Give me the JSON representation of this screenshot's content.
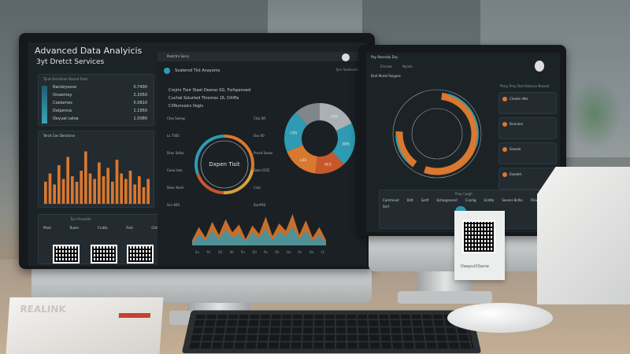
{
  "left_monitor": {
    "title": "Advanced Data Analyicis",
    "subtitle": "3yt Dretct Services",
    "table": {
      "header": "Tyrat Dcsistime Stared Totat",
      "rows": [
        {
          "label": "Randzyoose",
          "value": "0.7490"
        },
        {
          "label": "Onoentoy",
          "value": "2.2050"
        },
        {
          "label": "Coelarnes",
          "value": "5.0810"
        },
        {
          "label": "Delpenna",
          "value": "1.1950"
        },
        {
          "label": "Oeyual catsa",
          "value": "1.0080"
        }
      ]
    },
    "bar_panel_title": "Terch Cen Derstinnn",
    "bar_values": [
      40,
      55,
      35,
      70,
      45,
      85,
      50,
      40,
      60,
      95,
      55,
      45,
      75,
      50,
      65,
      40,
      80,
      55,
      45,
      60,
      35,
      50,
      30,
      45
    ],
    "bottom_headers": [
      "Pleel",
      "Ruom",
      "Crutto",
      "Fied",
      "Clst"
    ],
    "bottom_tab": "Tyrs Rceustle",
    "app_tab": "Postctrn Sarry",
    "center_title": "Svatersd Tlst Anayoms",
    "notes": [
      "Crojrin Tieir Stast Deerac 0G, Forhpenoed",
      "Cuvtial Ssturted Tlnomes 16, DXiffa",
      "CXRunvaics Ilegis"
    ],
    "ring_center": "Dxpen Tisit",
    "ring_labels": [
      "Ctso Seeng",
      "Clsa Sft",
      "Ls 7305",
      "Oss 60",
      "Drac Sefos",
      "Pracd Sesse",
      "Ceao Iseo",
      "Sota 0155",
      "Deec Kanil",
      "Ccal",
      "Scx 60S",
      "Sor#60"
    ],
    "donut": {
      "slices": [
        {
          "label": "C0S",
          "value": 18,
          "color": "#aab1b4"
        },
        {
          "label": "D0S",
          "value": 20,
          "color": "#2f9bb3"
        },
        {
          "label": "0CS",
          "value": 14,
          "color": "#c8572c"
        },
        {
          "label": "L0S",
          "value": 17,
          "color": "#d9782f"
        },
        {
          "label": "C0S",
          "value": 19,
          "color": "#2f9bb3"
        },
        {
          "label": "",
          "value": 12,
          "color": "#7f878a"
        }
      ]
    },
    "area_values": [
      10,
      35,
      15,
      45,
      20,
      50,
      25,
      40,
      12,
      38,
      22,
      55,
      18,
      42,
      28,
      60,
      20,
      48,
      15,
      35,
      10
    ],
    "area_values2": [
      5,
      20,
      10,
      28,
      12,
      30,
      15,
      22,
      8,
      25,
      14,
      32,
      10,
      26,
      18,
      35,
      12,
      28,
      8,
      20,
      5
    ],
    "area_ticks": [
      "Eu",
      "Pu",
      "20",
      "00",
      "Pu",
      "Du",
      "Pa",
      "Re",
      "Ou",
      "Fa",
      "De",
      "LF"
    ],
    "user_label": "Tyer Seeilocell"
  },
  "right_monitor": {
    "app_title": "Pay Reecody Dsy",
    "tabs": [
      "Elvcaes",
      "Nyoda"
    ],
    "section_title": "Drot Mutel Puigaes",
    "side_title": "Phisy Prey Tent Rstuncs Nesmd",
    "cards": [
      "Clreole dtte",
      "Brunane",
      "Ssesde",
      "Eluedet"
    ],
    "bottom_title": "Pray Corgh",
    "bottom_items": [
      "Cammned",
      "Dstt",
      "Sertf",
      "Estaaganond",
      "Ccarlig",
      "Erzdte",
      "Sesens Bslhe",
      "Fllae Dsdes",
      "Sort"
    ]
  },
  "qr_card": {
    "caption": "DeeputXSame"
  },
  "box_left_label": "REALINK",
  "colors": {
    "orange": "#d9782f",
    "teal": "#2f9bb3",
    "screen": "#1c2327"
  }
}
